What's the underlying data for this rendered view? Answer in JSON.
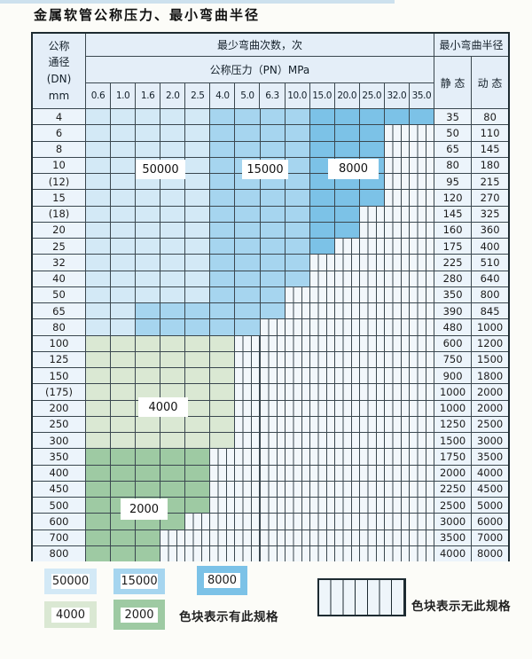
{
  "title": "金属软管公称压力、最小弯曲半径",
  "header": {
    "dn_lines": [
      "公称",
      "通径",
      "(DN)",
      "mm"
    ],
    "cycles": "最少弯曲次数，次",
    "pn": "公称压力（PN）MPa",
    "radius": "最小弯曲半径",
    "static_label": "静 态",
    "dynamic_label": "动 态",
    "pressures": [
      "0.6",
      "1.0",
      "1.6",
      "2.0",
      "2.5",
      "4.0",
      "5.0",
      "6.3",
      "10.0",
      "15.0",
      "20.0",
      "25.0",
      "32.0",
      "35.0"
    ]
  },
  "colors": {
    "b1": "#d3e9f6",
    "b2": "#a6d5ef",
    "b3": "#7cc2e7",
    "g1": "#dae8d3",
    "g2": "#9ecaa3"
  },
  "zone_meaning": {
    "b1": "50000",
    "b2": "15000",
    "b3": "8000",
    "g1": "4000",
    "g2": "2000",
    "x": "无此规格"
  },
  "rows": [
    {
      "dn": "4",
      "segments": [
        [
          "b1",
          5
        ],
        [
          "b2",
          4
        ],
        [
          "b3",
          5
        ]
      ],
      "static": "35",
      "dynamic": "80"
    },
    {
      "dn": "6",
      "segments": [
        [
          "b1",
          5
        ],
        [
          "b2",
          4
        ],
        [
          "b3",
          3
        ]
      ],
      "static": "50",
      "dynamic": "110"
    },
    {
      "dn": "8",
      "segments": [
        [
          "b1",
          5
        ],
        [
          "b2",
          4
        ],
        [
          "b3",
          3
        ]
      ],
      "static": "65",
      "dynamic": "145"
    },
    {
      "dn": "10",
      "segments": [
        [
          "b1",
          5
        ],
        [
          "b2",
          4
        ],
        [
          "b3",
          3
        ]
      ],
      "static": "80",
      "dynamic": "180"
    },
    {
      "dn": "(12)",
      "segments": [
        [
          "b1",
          5
        ],
        [
          "b2",
          4
        ],
        [
          "b3",
          3
        ]
      ],
      "static": "95",
      "dynamic": "215"
    },
    {
      "dn": "15",
      "segments": [
        [
          "b1",
          5
        ],
        [
          "b2",
          4
        ],
        [
          "b3",
          3
        ]
      ],
      "static": "120",
      "dynamic": "270"
    },
    {
      "dn": "(18)",
      "segments": [
        [
          "b1",
          5
        ],
        [
          "b2",
          4
        ],
        [
          "b3",
          2
        ]
      ],
      "static": "145",
      "dynamic": "325"
    },
    {
      "dn": "20",
      "segments": [
        [
          "b1",
          5
        ],
        [
          "b2",
          4
        ],
        [
          "b3",
          2
        ]
      ],
      "static": "160",
      "dynamic": "360"
    },
    {
      "dn": "25",
      "segments": [
        [
          "b1",
          5
        ],
        [
          "b2",
          4
        ],
        [
          "b3",
          1
        ]
      ],
      "static": "175",
      "dynamic": "400"
    },
    {
      "dn": "32",
      "segments": [
        [
          "b1",
          5
        ],
        [
          "b2",
          4
        ]
      ],
      "static": "225",
      "dynamic": "510"
    },
    {
      "dn": "40",
      "segments": [
        [
          "b1",
          5
        ],
        [
          "b2",
          4
        ]
      ],
      "static": "280",
      "dynamic": "640"
    },
    {
      "dn": "50",
      "segments": [
        [
          "b1",
          5
        ],
        [
          "b2",
          3
        ]
      ],
      "static": "350",
      "dynamic": "800"
    },
    {
      "dn": "65",
      "segments": [
        [
          "b1",
          2
        ],
        [
          "b2",
          6
        ]
      ],
      "static": "390",
      "dynamic": "845"
    },
    {
      "dn": "80",
      "segments": [
        [
          "b1",
          2
        ],
        [
          "b2",
          5
        ]
      ],
      "static": "480",
      "dynamic": "1000"
    },
    {
      "dn": "100",
      "segments": [
        [
          "g1",
          6
        ]
      ],
      "static": "600",
      "dynamic": "1200"
    },
    {
      "dn": "125",
      "segments": [
        [
          "g1",
          6
        ]
      ],
      "static": "750",
      "dynamic": "1500"
    },
    {
      "dn": "150",
      "segments": [
        [
          "g1",
          6
        ]
      ],
      "static": "900",
      "dynamic": "1800"
    },
    {
      "dn": "(175)",
      "segments": [
        [
          "g1",
          6
        ]
      ],
      "static": "1000",
      "dynamic": "2000"
    },
    {
      "dn": "200",
      "segments": [
        [
          "g1",
          6
        ]
      ],
      "static": "1000",
      "dynamic": "2000"
    },
    {
      "dn": "250",
      "segments": [
        [
          "g1",
          6
        ]
      ],
      "static": "1250",
      "dynamic": "2500"
    },
    {
      "dn": "300",
      "segments": [
        [
          "g1",
          6
        ]
      ],
      "static": "1500",
      "dynamic": "3000"
    },
    {
      "dn": "350",
      "segments": [
        [
          "g2",
          5
        ]
      ],
      "static": "1750",
      "dynamic": "3500"
    },
    {
      "dn": "400",
      "segments": [
        [
          "g2",
          5
        ]
      ],
      "static": "2000",
      "dynamic": "4000"
    },
    {
      "dn": "450",
      "segments": [
        [
          "g2",
          5
        ]
      ],
      "static": "2250",
      "dynamic": "4500"
    },
    {
      "dn": "500",
      "segments": [
        [
          "g2",
          5
        ]
      ],
      "static": "2500",
      "dynamic": "5000"
    },
    {
      "dn": "600",
      "segments": [
        [
          "g2",
          4
        ]
      ],
      "static": "3000",
      "dynamic": "6000"
    },
    {
      "dn": "700",
      "segments": [
        [
          "g2",
          3
        ]
      ],
      "static": "3500",
      "dynamic": "7000"
    },
    {
      "dn": "800",
      "segments": [
        [
          "g2",
          3
        ]
      ],
      "static": "4000",
      "dynamic": "8000"
    }
  ],
  "overlays": {
    "l50000": "50000",
    "l15000": "15000",
    "l8000": "8000",
    "l4000": "4000",
    "l2000": "2000"
  },
  "legend": {
    "items": [
      {
        "label": "50000",
        "zone": "b1"
      },
      {
        "label": "15000",
        "zone": "b2"
      },
      {
        "label": "8000",
        "zone": "b3"
      },
      {
        "label": "4000",
        "zone": "g1"
      },
      {
        "label": "2000",
        "zone": "g2"
      }
    ],
    "has_spec_text": "色块表示有此规格",
    "no_spec_text": "色块表示无此规格"
  }
}
